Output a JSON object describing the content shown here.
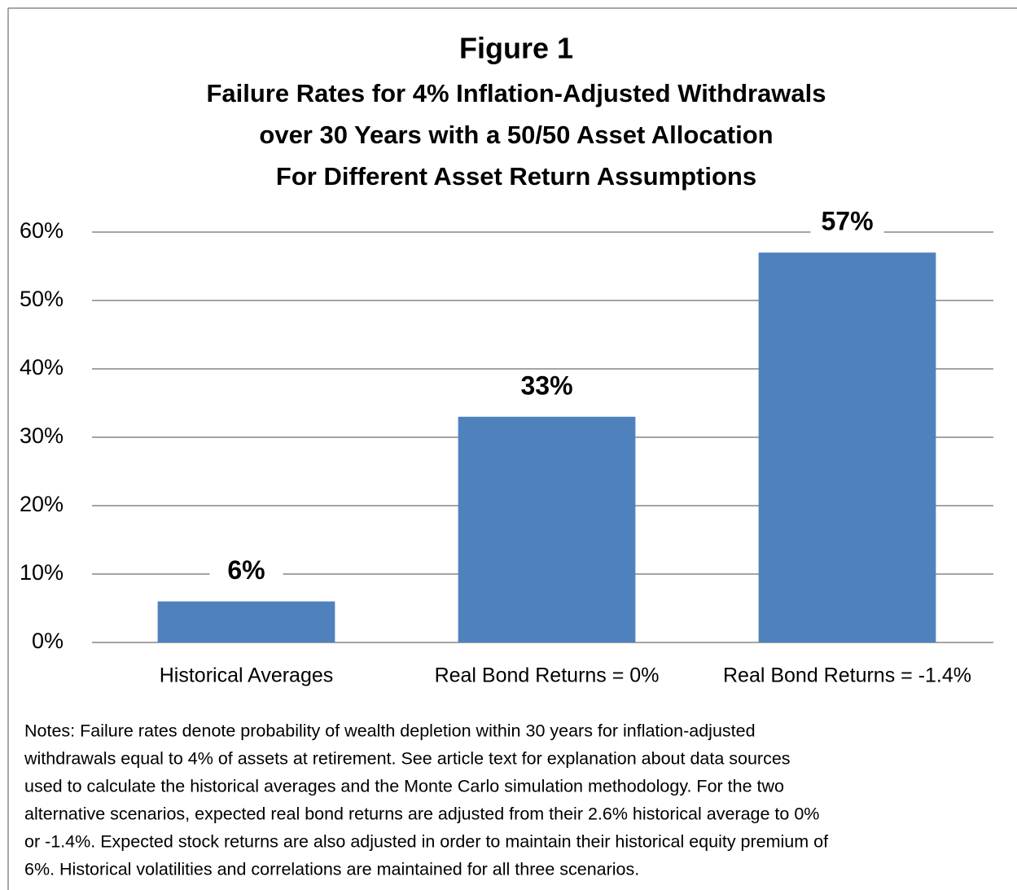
{
  "chart_data": {
    "type": "bar",
    "title": "Figure 1",
    "subtitle": [
      "Failure Rates for 4% Inflation-Adjusted Withdrawals",
      "over 30 Years with a 50/50 Asset Allocation",
      "For Different Asset Return Assumptions"
    ],
    "categories": [
      "Historical Averages",
      "Real Bond Returns = 0%",
      "Real Bond Returns = -1.4%"
    ],
    "values": [
      6,
      33,
      57
    ],
    "value_labels": [
      "6%",
      "33%",
      "57%"
    ],
    "color": "#4f81bd",
    "ylim": [
      0,
      60
    ],
    "yticks": [
      {
        "value": 0,
        "label": "0%"
      },
      {
        "value": 10,
        "label": "10%"
      },
      {
        "value": 20,
        "label": "20%"
      },
      {
        "value": 30,
        "label": "30%"
      },
      {
        "value": 40,
        "label": "40%"
      },
      {
        "value": 50,
        "label": "50%"
      },
      {
        "value": 60,
        "label": "60%"
      }
    ],
    "grid": true,
    "notes": [
      "Notes: Failure rates denote probability of wealth depletion within 30 years for inflation-adjusted",
      "withdrawals equal to 4% of assets at retirement.  See article text for explanation about data sources",
      "used to calculate the historical averages and the Monte Carlo simulation methodology. For the  two",
      "alternative scenarios, expected real bond returns are adjusted from their 2.6% historical average to 0%",
      "or -1.4%. Expected stock returns are also adjusted in order to maintain their historical equity premium of",
      "6%. Historical volatilities and correlations are maintained for all three scenarios."
    ]
  }
}
